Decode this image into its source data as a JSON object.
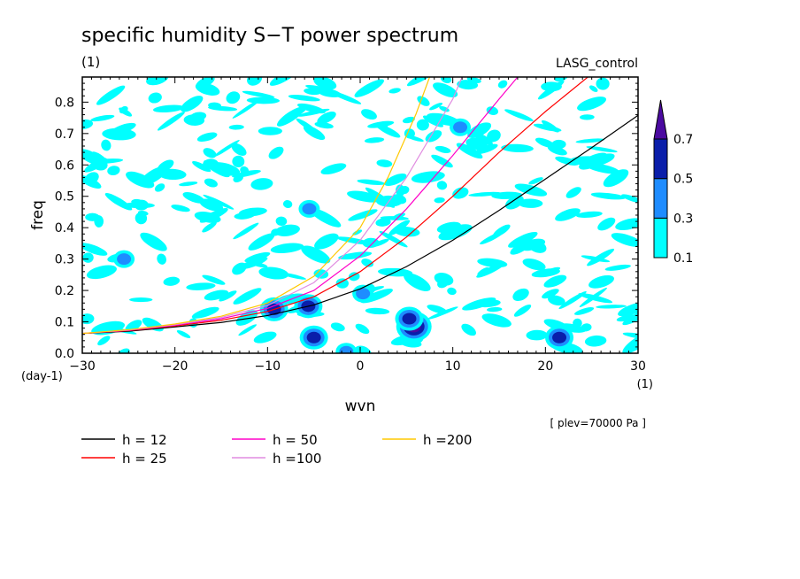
{
  "chart_data": {
    "type": "heatmap",
    "title": "specific humidity S−T power spectrum",
    "subtitle_left": "(1)",
    "subtitle_right": "LASG_control",
    "xlabel": "wvn",
    "ylabel": "freq",
    "x_unit": "(1)",
    "y_unit": "(day-1)",
    "annotation": "[ plev=70000 Pa ]",
    "xlim": [
      -30,
      30
    ],
    "ylim": [
      0,
      0.88
    ],
    "x_ticks": [
      -30,
      -20,
      -10,
      0,
      10,
      20,
      30
    ],
    "y_ticks": [
      0.0,
      0.1,
      0.2,
      0.3,
      0.4,
      0.5,
      0.6,
      0.7,
      0.8
    ],
    "x_tick_labels": [
      "−30",
      "−20",
      "−10",
      "0",
      "10",
      "20",
      "30"
    ],
    "y_tick_labels": [
      "0.0",
      "0.1",
      "0.2",
      "0.3",
      "0.4",
      "0.5",
      "0.6",
      "0.7",
      "0.8"
    ],
    "colorbar": {
      "levels": [
        0.1,
        0.3,
        0.5,
        0.7
      ],
      "labels": [
        "0.1",
        "0.3",
        "0.5",
        "0.7"
      ],
      "colors": [
        "#00ffff",
        "#1e8cff",
        "#0a1eaa",
        "#4b0aa0"
      ],
      "extend": "max"
    },
    "series": [
      {
        "name": "h = 12",
        "color": "#000000",
        "x": [
          -30,
          -25,
          -20,
          -15,
          -10,
          -5,
          0,
          5,
          10,
          15,
          20,
          25,
          30
        ],
        "y": [
          0.063,
          0.07,
          0.084,
          0.098,
          0.12,
          0.154,
          0.205,
          0.276,
          0.36,
          0.455,
          0.555,
          0.655,
          0.758
        ]
      },
      {
        "name": "h = 25",
        "color": "#ff0000",
        "x": [
          -30,
          -25,
          -20,
          -15,
          -10,
          -5,
          0,
          5,
          10,
          15,
          20,
          25
        ],
        "y": [
          0.063,
          0.072,
          0.087,
          0.105,
          0.133,
          0.18,
          0.26,
          0.37,
          0.5,
          0.64,
          0.77,
          0.89
        ]
      },
      {
        "name": "h = 50",
        "color": "#ff00c8",
        "x": [
          -30,
          -25,
          -20,
          -15,
          -10,
          -5,
          0,
          5,
          10,
          15,
          17
        ],
        "y": [
          0.063,
          0.073,
          0.089,
          0.11,
          0.143,
          0.2,
          0.31,
          0.46,
          0.63,
          0.81,
          0.88
        ]
      },
      {
        "name": "h =100",
        "color": "#e08ce0",
        "x": [
          -30,
          -25,
          -20,
          -15,
          -10,
          -5,
          0,
          5,
          10,
          11
        ],
        "y": [
          0.063,
          0.074,
          0.091,
          0.114,
          0.152,
          0.225,
          0.36,
          0.56,
          0.81,
          0.88
        ]
      },
      {
        "name": "h =200",
        "color": "#ffc800",
        "x": [
          -30,
          -25,
          -20,
          -15,
          -10,
          -5,
          0,
          3,
          6,
          7.5
        ],
        "y": [
          0.063,
          0.075,
          0.093,
          0.118,
          0.16,
          0.245,
          0.4,
          0.56,
          0.76,
          0.88
        ]
      }
    ],
    "contour_patches": [
      {
        "x": 5.8,
        "y": 0.085,
        "level": 0.7
      },
      {
        "x": 5.3,
        "y": 0.11,
        "level": 0.5
      },
      {
        "x": -5.0,
        "y": 0.05,
        "level": 0.5
      },
      {
        "x": -5.6,
        "y": 0.15,
        "level": 0.5
      },
      {
        "x": -9.3,
        "y": 0.14,
        "level": 0.5
      },
      {
        "x": 21.5,
        "y": 0.05,
        "level": 0.5
      },
      {
        "x": -25.5,
        "y": 0.3,
        "level": 0.3
      },
      {
        "x": -5.5,
        "y": 0.46,
        "level": 0.3
      },
      {
        "x": 0.3,
        "y": 0.19,
        "level": 0.3
      },
      {
        "x": 10.8,
        "y": 0.72,
        "level": 0.3
      },
      {
        "x": -1.5,
        "y": 0.005,
        "level": 0.3
      }
    ]
  }
}
